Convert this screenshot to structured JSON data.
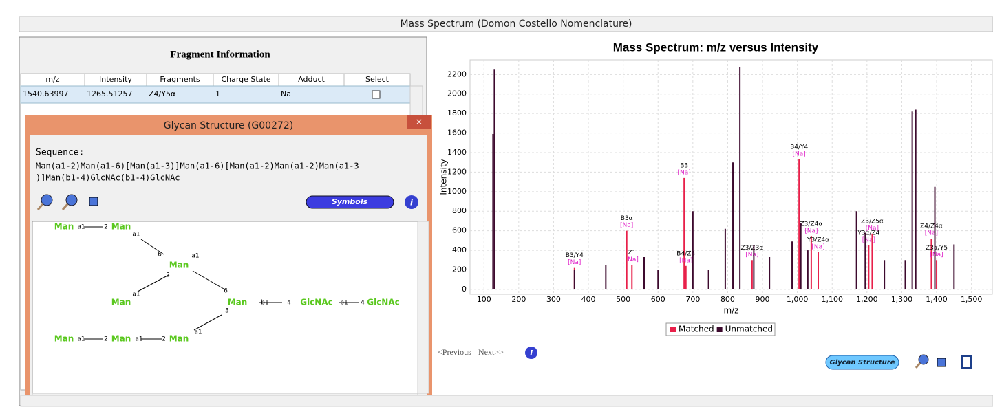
{
  "window": {
    "title": "Mass Spectrum (Domon Costello Nomenclature)"
  },
  "fragments": {
    "title": "Fragment Information",
    "columns": [
      "m/z",
      "Intensity",
      "Fragments",
      "Charge State",
      "Adduct",
      "Select"
    ],
    "rows": [
      [
        "1540.63997",
        "1265.51257",
        "Z4/Y5α",
        "1",
        "Na"
      ]
    ]
  },
  "glycan": {
    "title": "Glycan Structure (G00272)",
    "sequence_label": "Sequence:",
    "sequence_lines": [
      "Man(a1-2)Man(a1-6)[Man(a1-3)]Man(a1-6)[Man(a1-2)Man(a1-2)Man(a1-3",
      ")]Man(b1-4)GlcNAc(b1-4)GlcNAc"
    ],
    "button": "Symbols",
    "nodes": [
      "Man",
      "Man",
      "Man",
      "Man",
      "Man",
      "GlcNAc",
      "GlcNAc",
      "Man",
      "Man",
      "Man"
    ],
    "links": [
      "a1",
      "2",
      "a1",
      "6",
      "a1",
      "3",
      "a1",
      "6",
      "b1",
      "4",
      "b1",
      "4",
      "a1",
      "3",
      "a1",
      "2",
      "a1",
      "2"
    ]
  },
  "nav": {
    "previous": "<Previous",
    "next": "Next>>",
    "button": "Glycan Structure"
  },
  "chart_data": {
    "type": "spectrum",
    "title": "Mass Spectrum: m/z versus Intensity",
    "x_label": "m/z",
    "y_label": "Intensity",
    "xlim": [
      60,
      1560
    ],
    "ylim": [
      -50,
      2350
    ],
    "xticks": [
      100,
      200,
      300,
      400,
      500,
      600,
      700,
      800,
      900,
      {
        "value": 1000,
        "label": "1,000"
      },
      {
        "value": 1100,
        "label": "1,100"
      },
      {
        "value": 1200,
        "label": "1,200"
      },
      {
        "value": 1300,
        "label": "1,300"
      },
      {
        "value": 1400,
        "label": "1,400"
      },
      {
        "value": 1500,
        "label": "1,500"
      }
    ],
    "yticks": [
      0,
      200,
      400,
      600,
      800,
      1000,
      1200,
      1400,
      1600,
      1800,
      2000,
      2200
    ],
    "grid": true,
    "series": [
      {
        "name": "Matched",
        "color": "#e8204a",
        "x": [
          360,
          525,
          510,
          675,
          680,
          870,
          1005,
          1040,
          1060,
          1205,
          1215,
          1385,
          1400
        ],
        "values": [
          220,
          250,
          600,
          1140,
          240,
          300,
          1330,
          540,
          380,
          450,
          570,
          520,
          300
        ],
        "labels": [
          "B3/Y4",
          "Z1",
          "B3α",
          "B3",
          "B4/Z3",
          "Z3/Z3α",
          "B4/Y4",
          "Z3/Z4α",
          "Y3/Z4α",
          "Y3α/Z4",
          "Z3/Z5α",
          "Z4/Z4α",
          "Z3α/Y5"
        ],
        "adducts": [
          "[Na]",
          "[Na]",
          "[Na]",
          "[Na]",
          "[Na]",
          "[Na]",
          "[Na]",
          "[Na]",
          "[Na]",
          "[Na]",
          "[Na]",
          "[Na]",
          "[Na]"
        ]
      },
      {
        "name": "Unmatched",
        "color": "#3d0a2e",
        "x": [
          126,
          130,
          360,
          450,
          560,
          600,
          700,
          745,
          793,
          815,
          835,
          875,
          920,
          985,
          1010,
          1030,
          1170,
          1195,
          1250,
          1310,
          1330,
          1340,
          1395,
          1450
        ],
        "values": [
          1590,
          2250,
          200,
          250,
          330,
          200,
          800,
          200,
          620,
          1300,
          2280,
          450,
          330,
          490,
          680,
          400,
          800,
          580,
          300,
          300,
          1820,
          1840,
          1050,
          460
        ]
      }
    ],
    "legend": "bottom"
  }
}
